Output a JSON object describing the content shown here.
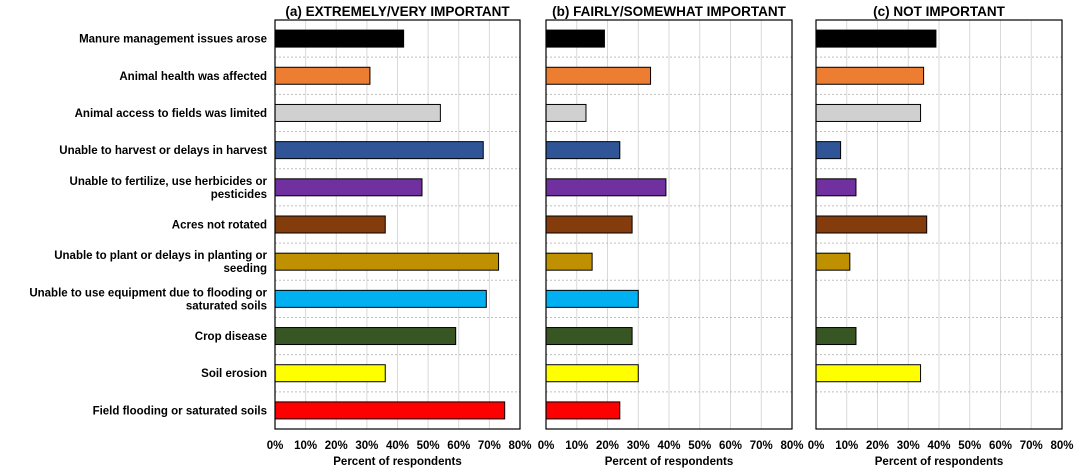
{
  "chart_data": {
    "type": "bar",
    "orientation": "horizontal",
    "categories": [
      [
        "Manure management issues arose"
      ],
      [
        "Animal health was affected"
      ],
      [
        "Animal access to fields was limited"
      ],
      [
        "Unable to harvest or delays in harvest"
      ],
      [
        "Unable to fertilize, use herbicides or",
        "pesticides"
      ],
      [
        "Acres not rotated"
      ],
      [
        "Unable to plant or delays in planting or",
        "seeding"
      ],
      [
        "Unable to use equipment due to flooding or",
        "saturated soils"
      ],
      [
        "Crop disease"
      ],
      [
        "Soil erosion"
      ],
      [
        "Field flooding or saturated soils"
      ]
    ],
    "colors": [
      "#000000",
      "#ed7d31",
      "#d0d0d0",
      "#2f5597",
      "#7030a0",
      "#843c0c",
      "#bf9000",
      "#00b0f0",
      "#375623",
      "#ffff00",
      "#ff0000"
    ],
    "xlim": [
      0,
      80
    ],
    "xticks": [
      "0%",
      "10%",
      "20%",
      "30%",
      "40%",
      "50%",
      "60%",
      "70%",
      "80%"
    ],
    "xlabel": "Percent of respondents",
    "grid": "vertical",
    "panels": [
      {
        "title": "(a) EXTREMELY/VERY  IMPORTANT",
        "values": [
          42,
          31,
          54,
          68,
          48,
          36,
          73,
          69,
          59,
          36,
          75
        ]
      },
      {
        "title": "(b) FAIRLY/SOMEWHAT IMPORTANT",
        "values": [
          19,
          34,
          13,
          24,
          39,
          28,
          15,
          30,
          28,
          30,
          24
        ]
      },
      {
        "title": "(c) NOT IMPORTANT",
        "values": [
          39,
          35,
          34,
          8,
          13,
          36,
          11,
          0,
          13,
          34,
          0
        ]
      }
    ]
  }
}
